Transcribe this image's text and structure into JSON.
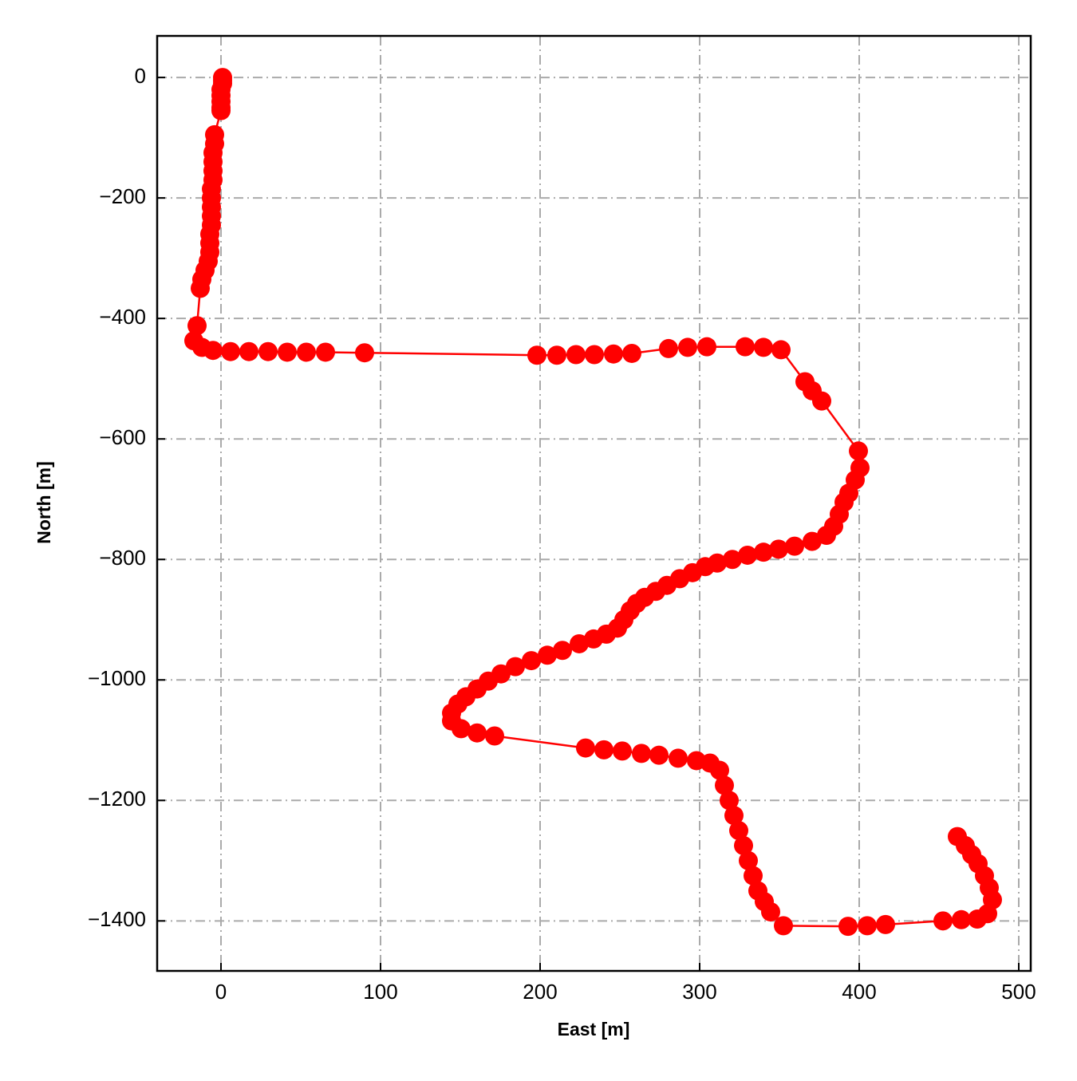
{
  "chart_data": {
    "type": "line",
    "xlabel": "East [m]",
    "ylabel": "North [m]",
    "color": "#ff0000",
    "grid": true,
    "xlim": [
      -40,
      507.5
    ],
    "ylim": [
      -1483,
      69
    ],
    "xticks": [
      0,
      100,
      200,
      300,
      400,
      500
    ],
    "yticks": [
      0,
      {
        "value": -200,
        "label": "−200"
      },
      {
        "value": -400,
        "label": "−400"
      },
      {
        "value": -600,
        "label": "−600"
      },
      {
        "value": -800,
        "label": "−800"
      },
      {
        "value": -1000,
        "label": "−1000"
      },
      {
        "value": -1200,
        "label": "−1200"
      },
      {
        "value": -1400,
        "label": "−1400"
      }
    ],
    "x": [
      1,
      1,
      1,
      0,
      0,
      0,
      0,
      0,
      -4,
      -4,
      -5,
      -5,
      -5,
      -5,
      -6,
      -6,
      -6,
      -6,
      -6,
      -7,
      -7,
      -7,
      -8,
      -10,
      -12,
      -13,
      -15,
      -17,
      -12,
      -5,
      6,
      17.5,
      29.5,
      41.5,
      53.5,
      65.5,
      90,
      198,
      210.5,
      222.5,
      234,
      246,
      257.5,
      280.5,
      292.5,
      304.5,
      328.5,
      340,
      351,
      366,
      370.5,
      376.5,
      399.5,
      400.5,
      397.5,
      393.5,
      390.5,
      387.5,
      384,
      379.5,
      370.5,
      359.5,
      349.5,
      340,
      330,
      320.5,
      311,
      303.5,
      295.5,
      287.5,
      279.5,
      272.5,
      265.5,
      260.5,
      256.5,
      252.5,
      248.5,
      241.5,
      233.5,
      224.5,
      214,
      204.5,
      194.5,
      184.5,
      175.5,
      167.5,
      160.5,
      153.5,
      148.5,
      144.5,
      144.5,
      150.5,
      160.5,
      171.5,
      228.5,
      240,
      251.5,
      263.5,
      274.5,
      286.5,
      298,
      306.5,
      312.5,
      315.5,
      318.5,
      321.5,
      324.5,
      327.5,
      330.5,
      333.5,
      336.5,
      340.5,
      344.5,
      352.5,
      393,
      405,
      416.5,
      452.5,
      464,
      474,
      480.5,
      483.5,
      481.5,
      478.5,
      474.5,
      470.5,
      466.5,
      461.5
    ],
    "values": [
      0,
      -5,
      -10,
      -20,
      -30,
      -40,
      -50,
      -55,
      -95,
      -110,
      -125,
      -140,
      -155,
      -170,
      -185,
      -200,
      -215,
      -230,
      -245,
      -260,
      -275,
      -290,
      -305,
      -320,
      -335,
      -350,
      -412,
      -437,
      -448,
      -453,
      -455,
      -455,
      -455,
      -456,
      -456,
      -456,
      -457,
      -461,
      -461,
      -460,
      -460,
      -459,
      -458,
      -450,
      -448,
      -447,
      -447,
      -448,
      -452,
      -505,
      -520,
      -537,
      -620,
      -648,
      -668,
      -690,
      -705,
      -725,
      -745,
      -760,
      -770,
      -778,
      -783,
      -788,
      -793,
      -800,
      -806,
      -812,
      -822,
      -832,
      -843,
      -853,
      -863,
      -873,
      -885,
      -900,
      -914,
      -924,
      -932,
      -940,
      -951,
      -959,
      -968,
      -978,
      -990,
      -1002,
      -1015,
      -1028,
      -1040,
      -1055,
      -1068,
      -1081,
      -1088,
      -1093,
      -1113,
      -1116,
      -1118,
      -1122,
      -1125,
      -1130,
      -1134,
      -1138,
      -1150,
      -1175,
      -1200,
      -1225,
      -1250,
      -1275,
      -1300,
      -1325,
      -1350,
      -1368,
      -1385,
      -1408,
      -1409,
      -1408,
      -1406,
      -1400,
      -1398,
      -1397,
      -1388,
      -1365,
      -1345,
      -1325,
      -1305,
      -1290,
      -1275,
      -1260
    ]
  }
}
